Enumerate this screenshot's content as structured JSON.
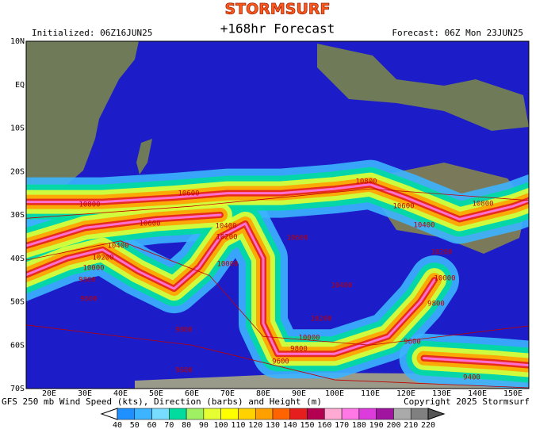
{
  "logo": "STORMSURF",
  "header": {
    "initialized": "Initialized: 06Z16JUN25",
    "title": "+168hr Forecast",
    "valid": "Forecast: 06Z Mon 23JUN25"
  },
  "lat_labels": [
    "10N",
    "EQ",
    "10S",
    "20S",
    "30S",
    "40S",
    "50S",
    "60S",
    "70S"
  ],
  "lon_labels": [
    "20E",
    "30E",
    "40E",
    "50E",
    "60E",
    "70E",
    "80E",
    "90E",
    "100E",
    "110E",
    "120E",
    "130E",
    "140E",
    "150E"
  ],
  "contour_labels": [
    10800,
    10600,
    10600,
    10400,
    10200,
    10000,
    9800,
    9600,
    10400,
    10200,
    10000,
    10600,
    10800,
    10600,
    10800,
    10400,
    10200,
    10000,
    10400,
    10200,
    10000,
    9800,
    9600,
    9800,
    9600,
    9800,
    9600,
    9400
  ],
  "footer": {
    "description": "GFS 250 mb Wind Speed (kts), Direction (barbs) and Height (m)",
    "copyright": "Copyright 2025 Stormsurf"
  },
  "colorbar": {
    "levels": [
      40,
      50,
      60,
      70,
      80,
      90,
      100,
      110,
      120,
      130,
      140,
      150,
      160,
      170,
      180,
      190,
      200,
      210,
      220
    ],
    "colors": [
      "#1e90ff",
      "#3cb4ff",
      "#78dcff",
      "#00dca0",
      "#a0f064",
      "#e6ff32",
      "#ffff00",
      "#ffd200",
      "#ffa000",
      "#ff6400",
      "#e61e1e",
      "#b40050",
      "#ffaad2",
      "#ff78e6",
      "#dc3cdc",
      "#a014a0",
      "#aaaaaa",
      "#808080"
    ]
  }
}
